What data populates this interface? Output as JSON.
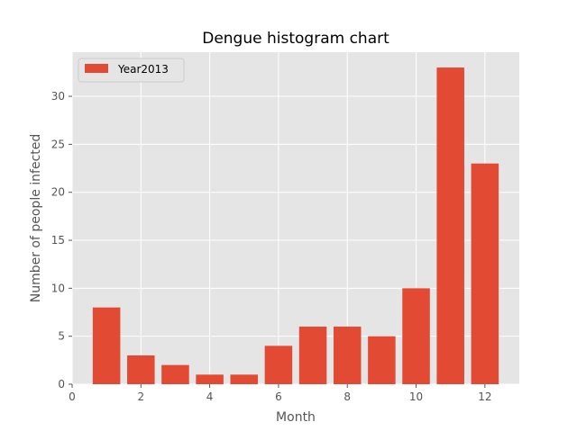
{
  "chart_data": {
    "type": "bar",
    "title": "Dengue histogram chart",
    "xlabel": "Month",
    "ylabel": "Number of people infected",
    "x": [
      1,
      2,
      3,
      4,
      5,
      6,
      7,
      8,
      9,
      10,
      11,
      12
    ],
    "series": [
      {
        "name": "Year2013",
        "values": [
          8,
          3,
          2,
          1,
          1,
          4,
          6,
          6,
          5,
          10,
          33,
          23
        ],
        "color": "#E24A33"
      }
    ],
    "xlim": [
      0,
      13
    ],
    "ylim": [
      0,
      34.6
    ],
    "xticks": [
      0,
      2,
      4,
      6,
      8,
      10,
      12
    ],
    "yticks": [
      0,
      5,
      10,
      15,
      20,
      25,
      30
    ],
    "grid": true,
    "legend_position": "top-left",
    "background_color": "#E5E5E5"
  }
}
